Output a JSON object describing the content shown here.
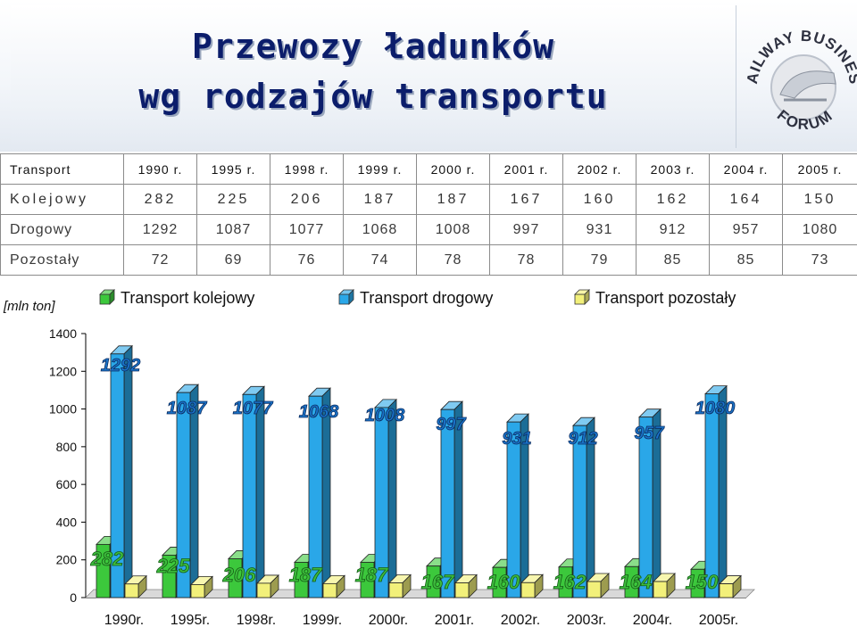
{
  "header": {
    "title_line1": "Przewozy ładunków",
    "title_line2": "wg rodzajów transportu",
    "logo_text_top": "RAILWAY BUSINESS",
    "logo_text_bottom": "FORUM"
  },
  "table": {
    "header": [
      "Transport",
      "1990 r.",
      "1995 r.",
      "1998 r.",
      "1999 r.",
      "2000 r.",
      "2001 r.",
      "2002 r.",
      "2003 r.",
      "2004 r.",
      "2005 r."
    ],
    "rows": [
      {
        "label": "Kolejowy",
        "values": [
          "282",
          "225",
          "206",
          "187",
          "187",
          "167",
          "160",
          "162",
          "164",
          "150"
        ]
      },
      {
        "label": "Drogowy",
        "values": [
          "1292",
          "1087",
          "1077",
          "1068",
          "1008",
          "997",
          "931",
          "912",
          "957",
          "1080"
        ]
      },
      {
        "label": "Pozostały",
        "values": [
          "72",
          "69",
          "76",
          "74",
          "78",
          "78",
          "79",
          "85",
          "85",
          "73"
        ]
      }
    ]
  },
  "chart_data": {
    "type": "bar",
    "unit_label": "[mln ton]",
    "categories": [
      "1990r.",
      "1995r.",
      "1998r.",
      "1999r.",
      "2000r.",
      "2001r.",
      "2002r.",
      "2003r.",
      "2004r.",
      "2005r."
    ],
    "series": [
      {
        "name": "Transport kolejowy",
        "values": [
          282,
          225,
          206,
          187,
          187,
          167,
          160,
          162,
          164,
          150
        ],
        "color": "#3cc83c"
      },
      {
        "name": "Transport drogowy",
        "values": [
          1292,
          1087,
          1077,
          1068,
          1008,
          997,
          931,
          912,
          957,
          1080
        ],
        "color": "#2aa7e8"
      },
      {
        "name": "Transport pozostały",
        "values": [
          72,
          69,
          76,
          74,
          78,
          78,
          79,
          85,
          85,
          73
        ],
        "color": "#f2f07a"
      }
    ],
    "ylim": [
      0,
      1400
    ],
    "yticks": [
      0,
      200,
      400,
      600,
      800,
      1000,
      1200,
      1400
    ],
    "grid": false,
    "legend_position": "top",
    "bar_style": "3d"
  }
}
